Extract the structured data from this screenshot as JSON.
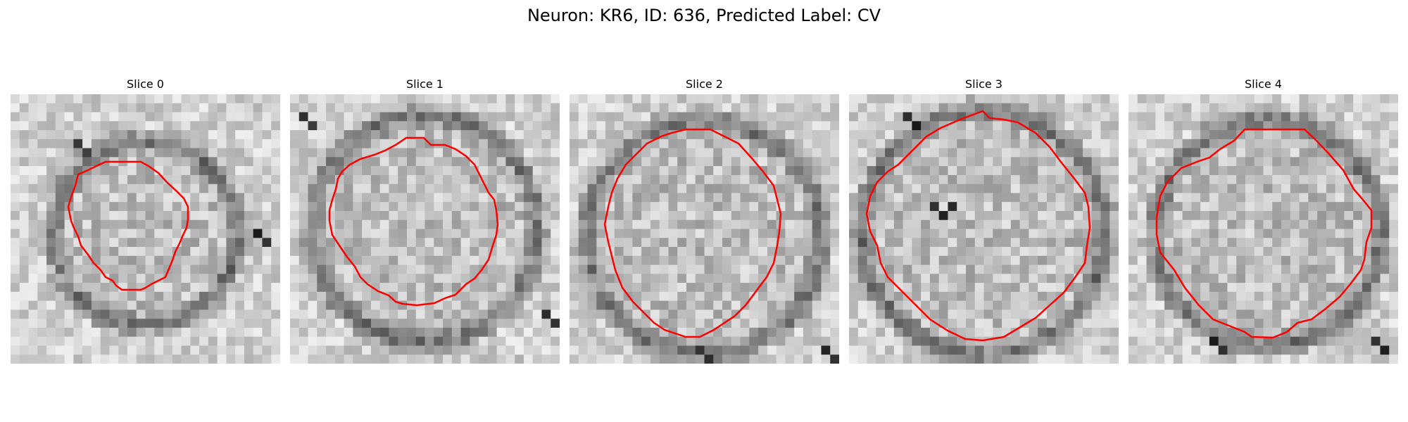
{
  "figure": {
    "title": "Neuron: KR6, ID: 636, Predicted Label: CV"
  },
  "panels": [
    {
      "title": "Slice 0"
    },
    {
      "title": "Slice 1"
    },
    {
      "title": "Slice 2"
    },
    {
      "title": "Slice 3"
    },
    {
      "title": "Slice 4"
    }
  ],
  "colors": {
    "contour": "#ff0000",
    "background": "#ffffff"
  }
}
